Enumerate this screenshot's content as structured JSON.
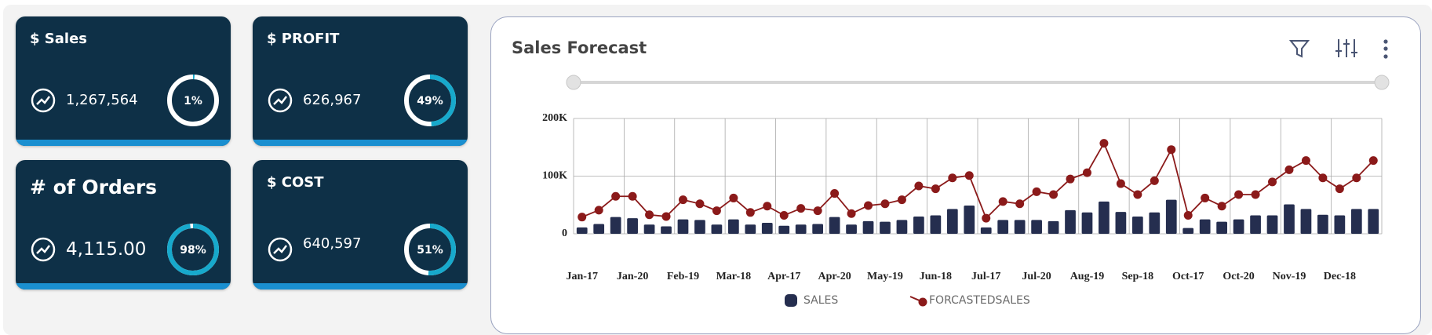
{
  "cards": [
    {
      "title": "$ Sales",
      "value": "1,267,564",
      "progress": 1,
      "progress_label": "1%"
    },
    {
      "title": "$ PROFIT",
      "value": "626,967",
      "progress": 49,
      "progress_label": "49%"
    },
    {
      "title": "# of Orders",
      "value": "4,115.00",
      "progress": 98,
      "progress_label": "98%"
    },
    {
      "title": "$ COST",
      "value": "640,597",
      "progress": 51,
      "progress_label": "51%"
    }
  ],
  "chart_data": {
    "type": "bar-line",
    "title": "Sales Forecast",
    "categories": [
      "Jan-17",
      null,
      null,
      "Jan-20",
      null,
      null,
      "Feb-19",
      null,
      null,
      "Mar-18",
      null,
      null,
      "Apr-17",
      null,
      null,
      "Apr-20",
      null,
      null,
      "May-19",
      null,
      null,
      "Jun-18",
      null,
      null,
      "Jul-17",
      null,
      null,
      "Jul-20",
      null,
      null,
      "Aug-19",
      null,
      null,
      "Sep-18",
      null,
      null,
      "Oct-17",
      null,
      null,
      "Oct-20",
      null,
      null,
      "Nov-19",
      null,
      null,
      "Dec-18",
      null,
      null
    ],
    "series": [
      {
        "name": "SALES",
        "color": "#252e4f",
        "kind": "bar",
        "values": [
          11000,
          17000,
          29000,
          27000,
          16000,
          13000,
          25000,
          24000,
          16000,
          25000,
          16000,
          19000,
          14000,
          16000,
          17000,
          29000,
          16000,
          22000,
          21000,
          24000,
          30000,
          32000,
          43000,
          49000,
          11000,
          24000,
          24000,
          24000,
          22000,
          41000,
          37000,
          56000,
          38000,
          30000,
          37000,
          59000,
          10000,
          25000,
          21000,
          25000,
          32000,
          32000,
          51000,
          43000,
          33000,
          32000,
          43000,
          43000
        ]
      },
      {
        "name": "FORCASTEDSALES",
        "color": "#8b1a1a",
        "kind": "line",
        "values": [
          29000,
          41000,
          65000,
          65000,
          33000,
          30000,
          59000,
          52000,
          40000,
          62000,
          37000,
          48000,
          32000,
          44000,
          40000,
          70000,
          35000,
          49000,
          52000,
          59000,
          83000,
          78000,
          97000,
          101000,
          27000,
          56000,
          52000,
          73000,
          68000,
          95000,
          106000,
          157000,
          87000,
          68000,
          92000,
          146000,
          32000,
          62000,
          48000,
          68000,
          68000,
          90000,
          111000,
          127000,
          97000,
          78000,
          97000,
          127000
        ]
      }
    ],
    "ylim": [
      0,
      200000
    ],
    "yticks": [
      0,
      {
        "value": 100000,
        "label": "100K"
      },
      {
        "value": 200000,
        "label": "200K"
      }
    ],
    "grid": true
  }
}
